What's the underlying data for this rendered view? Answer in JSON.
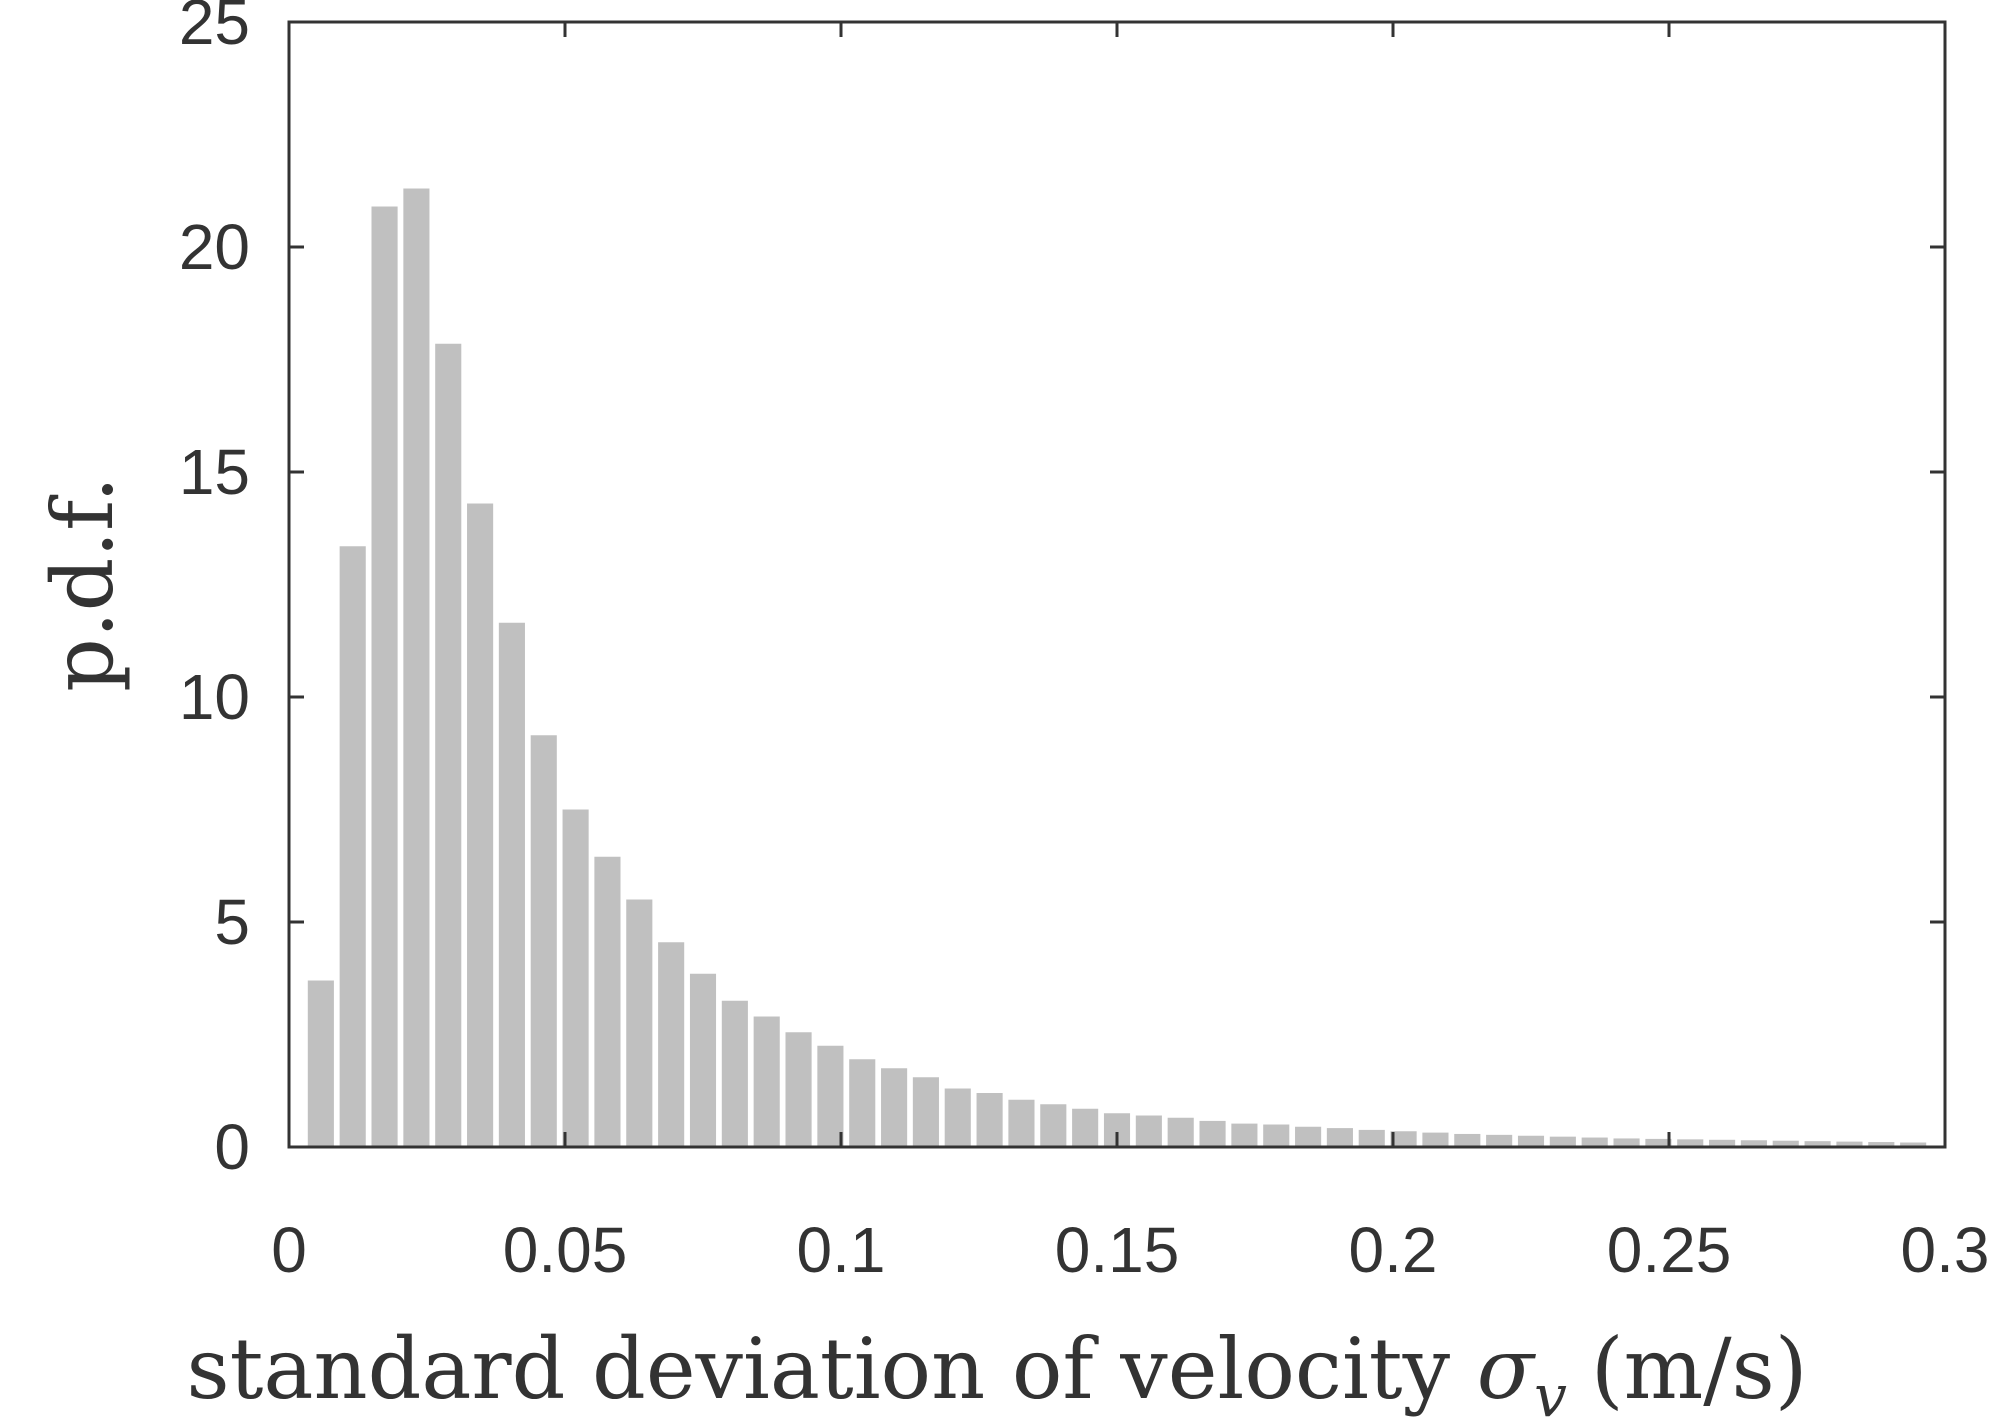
{
  "chart_data": {
    "type": "bar",
    "title": "",
    "xlabel": "standard deviation of velocity",
    "xlabel_symbol": "σ",
    "xlabel_subscript": "v",
    "xlabel_unit": "(m/s)",
    "ylabel": "p.d.f.",
    "xlim": [
      0,
      0.3
    ],
    "ylim": [
      0,
      25
    ],
    "bin_width": 0.00577,
    "grid": false,
    "xticks": [
      0,
      0.05,
      0.1,
      0.15,
      0.2,
      0.25,
      0.3
    ],
    "xtick_labels": [
      "0",
      "0.05",
      "0.1",
      "0.15",
      "0.2",
      "0.25",
      "0.3"
    ],
    "yticks": [
      0,
      5,
      10,
      15,
      20,
      25
    ],
    "ytick_labels": [
      "0",
      "5",
      "10",
      "15",
      "20",
      "25"
    ],
    "colors": {
      "bar": "#c0c0c0",
      "axis": "#333333",
      "background": "#ffffff"
    },
    "x": [
      0.00577,
      0.01154,
      0.01731,
      0.02308,
      0.02885,
      0.03462,
      0.04038,
      0.04615,
      0.05192,
      0.05769,
      0.06346,
      0.06923,
      0.075,
      0.08077,
      0.08654,
      0.09231,
      0.09808,
      0.10385,
      0.10962,
      0.11538,
      0.12115,
      0.12692,
      0.13269,
      0.13846,
      0.14423,
      0.15,
      0.15577,
      0.16154,
      0.16731,
      0.17308,
      0.17885,
      0.18462,
      0.19038,
      0.19615,
      0.20192,
      0.20769,
      0.21346,
      0.21923,
      0.225,
      0.23077,
      0.23654,
      0.24231,
      0.24808,
      0.25385,
      0.25962,
      0.26538,
      0.27115,
      0.27692,
      0.28269,
      0.28846,
      0.29423
    ],
    "values": [
      3.7,
      13.35,
      20.9,
      21.3,
      17.85,
      14.3,
      11.65,
      9.15,
      7.5,
      6.45,
      5.5,
      4.55,
      3.85,
      3.25,
      2.9,
      2.55,
      2.25,
      1.95,
      1.75,
      1.55,
      1.3,
      1.2,
      1.05,
      0.95,
      0.85,
      0.75,
      0.7,
      0.65,
      0.58,
      0.52,
      0.5,
      0.45,
      0.42,
      0.38,
      0.35,
      0.32,
      0.29,
      0.27,
      0.25,
      0.23,
      0.21,
      0.19,
      0.18,
      0.17,
      0.16,
      0.15,
      0.14,
      0.13,
      0.12,
      0.11,
      0.1
    ]
  }
}
